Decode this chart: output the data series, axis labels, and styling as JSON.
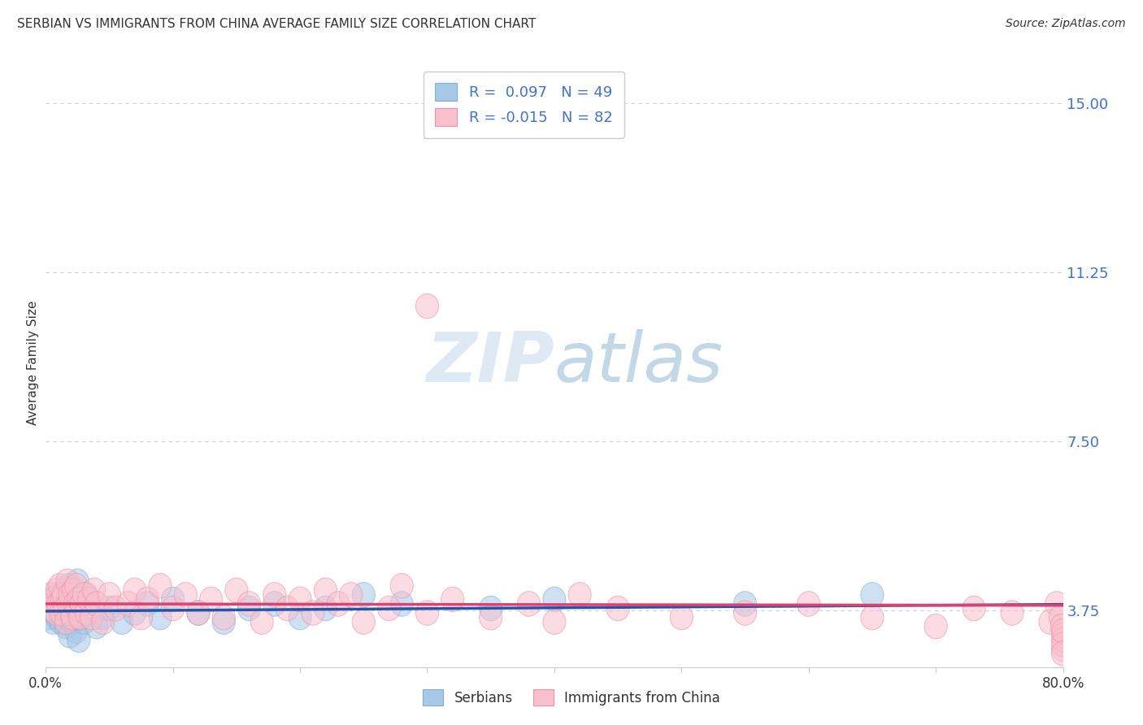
{
  "title": "SERBIAN VS IMMIGRANTS FROM CHINA AVERAGE FAMILY SIZE CORRELATION CHART",
  "source": "Source: ZipAtlas.com",
  "ylabel": "Average Family Size",
  "ytick_labels": [
    "3.75",
    "7.50",
    "11.25",
    "15.00"
  ],
  "ytick_values": [
    3.75,
    7.5,
    11.25,
    15.0
  ],
  "xlim": [
    0.0,
    80.0
  ],
  "ylim": [
    2.5,
    16.0
  ],
  "series1_label": "Serbians",
  "series1_fill_color": "#A8C8E8",
  "series1_edge_color": "#7EB0D5",
  "series1_line_color": "#2255AA",
  "series1_R": 0.097,
  "series1_N": 49,
  "series2_label": "Immigrants from China",
  "series2_fill_color": "#F8C0CC",
  "series2_edge_color": "#F090A8",
  "series2_line_color": "#E04070",
  "series2_R": -0.015,
  "series2_N": 82,
  "background_color": "#FFFFFF",
  "title_fontsize": 11,
  "ytick_color": "#4472C4",
  "text_color": "#333333",
  "legend_text_color": "#4472C4",
  "grid_color": "#CCCCCC",
  "watermark_color": "#D0E4F0",
  "serbians_x": [
    0.2,
    0.4,
    0.5,
    0.6,
    0.7,
    0.8,
    0.9,
    1.0,
    1.1,
    1.2,
    1.3,
    1.4,
    1.5,
    1.6,
    1.7,
    1.8,
    1.9,
    2.0,
    2.1,
    2.2,
    2.3,
    2.4,
    2.5,
    2.6,
    2.7,
    2.8,
    3.0,
    3.2,
    3.5,
    4.0,
    4.5,
    5.0,
    6.0,
    7.0,
    8.0,
    9.0,
    10.0,
    12.0,
    14.0,
    16.0,
    18.0,
    20.0,
    22.0,
    25.0,
    28.0,
    35.0,
    40.0,
    55.0,
    65.0
  ],
  "serbians_y": [
    3.6,
    3.8,
    4.0,
    3.5,
    3.7,
    3.9,
    3.6,
    4.1,
    3.8,
    3.5,
    3.7,
    3.9,
    4.2,
    3.4,
    3.6,
    4.3,
    3.2,
    3.8,
    3.5,
    4.0,
    3.7,
    3.3,
    4.4,
    3.1,
    3.6,
    3.9,
    3.5,
    4.1,
    3.7,
    3.4,
    3.6,
    3.8,
    3.5,
    3.7,
    3.9,
    3.6,
    4.0,
    3.7,
    3.5,
    3.8,
    3.9,
    3.6,
    3.8,
    4.1,
    3.9,
    3.8,
    4.0,
    3.9,
    4.1
  ],
  "china_x": [
    0.2,
    0.4,
    0.6,
    0.7,
    0.8,
    0.9,
    1.0,
    1.1,
    1.2,
    1.3,
    1.4,
    1.5,
    1.6,
    1.7,
    1.8,
    1.9,
    2.0,
    2.1,
    2.2,
    2.3,
    2.4,
    2.5,
    2.6,
    2.7,
    2.8,
    3.0,
    3.2,
    3.4,
    3.6,
    3.8,
    4.0,
    4.5,
    5.0,
    5.5,
    6.0,
    6.5,
    7.0,
    7.5,
    8.0,
    9.0,
    10.0,
    11.0,
    12.0,
    13.0,
    14.0,
    15.0,
    16.0,
    17.0,
    18.0,
    19.0,
    20.0,
    21.0,
    22.0,
    23.0,
    24.0,
    25.0,
    27.0,
    28.0,
    30.0,
    32.0,
    35.0,
    38.0,
    40.0,
    42.0,
    45.0,
    50.0,
    55.0,
    60.0,
    65.0,
    70.0,
    73.0,
    76.0,
    79.0,
    79.5,
    79.8,
    79.9,
    80.0,
    80.0,
    80.0,
    80.0,
    80.0,
    80.0
  ],
  "china_y": [
    3.9,
    4.1,
    3.8,
    4.0,
    3.7,
    4.2,
    3.9,
    4.3,
    3.7,
    4.0,
    4.1,
    3.8,
    3.5,
    4.4,
    3.9,
    4.1,
    3.7,
    3.6,
    4.2,
    3.9,
    4.3,
    3.8,
    4.0,
    3.6,
    3.9,
    4.1,
    3.7,
    4.0,
    3.6,
    4.2,
    3.9,
    3.5,
    4.1,
    3.8,
    10.5,
    3.9,
    4.2,
    3.6,
    4.0,
    4.3,
    3.8,
    4.1,
    3.7,
    4.0,
    3.6,
    4.2,
    3.9,
    3.5,
    4.1,
    3.8,
    4.0,
    3.7,
    4.2,
    3.9,
    4.1,
    3.5,
    3.8,
    4.3,
    3.7,
    4.0,
    3.6,
    3.9,
    3.5,
    4.1,
    3.8,
    3.6,
    3.7,
    3.9,
    3.6,
    3.4,
    3.8,
    3.7,
    3.5,
    3.9,
    3.6,
    3.4,
    2.9,
    3.2,
    3.1,
    3.0,
    3.3,
    2.8
  ]
}
